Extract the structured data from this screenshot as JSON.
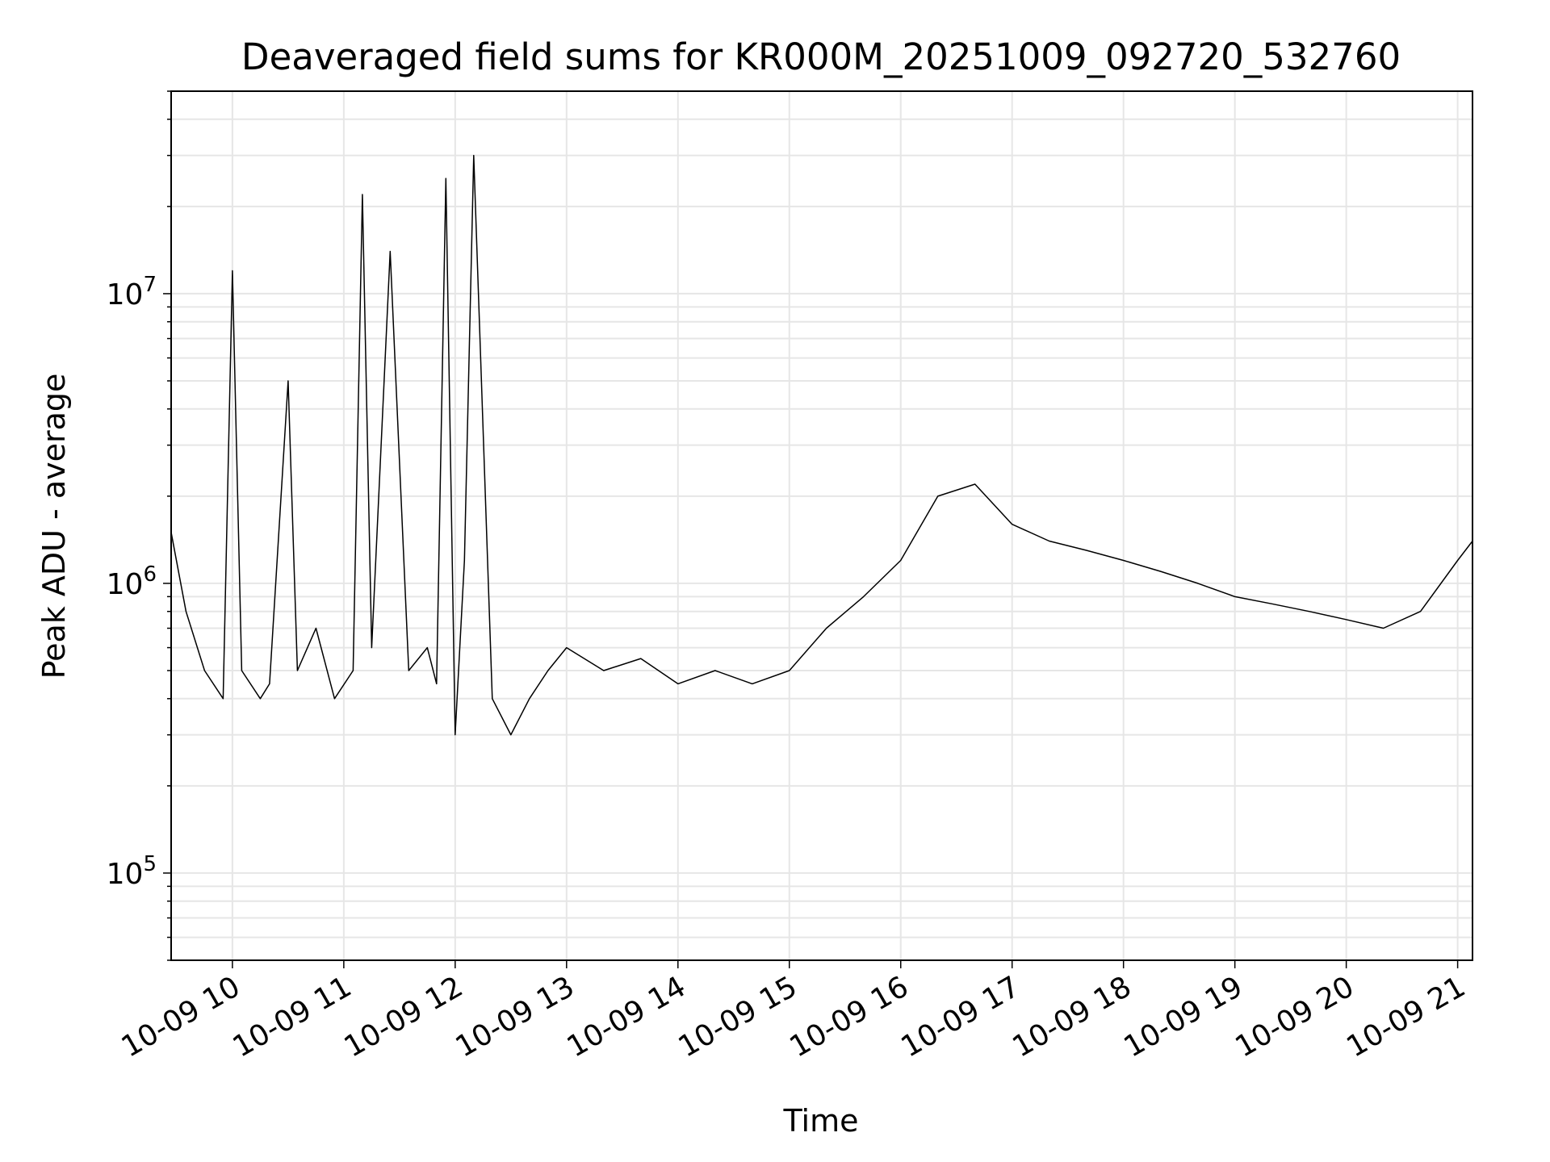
{
  "chart_data": {
    "type": "line",
    "title": "Deaveraged field sums for KR000M_20251009_092720_532760",
    "xlabel": "Time",
    "ylabel": "Peak ADU - average",
    "x_tick_labels": [
      "10-09 10",
      "10-09 11",
      "10-09 12",
      "10-09 13",
      "10-09 14",
      "10-09 15",
      "10-09 16",
      "10-09 17",
      "10-09 18",
      "10-09 19",
      "10-09 20",
      "10-09 21"
    ],
    "x_range": [
      "2025-10-09 09:27",
      "2025-10-09 21:08"
    ],
    "y_scale": "log",
    "ylim": [
      50000,
      50000000
    ],
    "y_major_ticks": [
      100000,
      1000000,
      10000000
    ],
    "y_tick_labels": [
      {
        "base": "10",
        "exp": "5"
      },
      {
        "base": "10",
        "exp": "6"
      },
      {
        "base": "10",
        "exp": "7"
      }
    ],
    "grid": true,
    "line_color": "#000000",
    "grid_color": "#e6e6e6",
    "series": [
      {
        "x": [
          "2025-10-09 09:27",
          "2025-10-09 09:35",
          "2025-10-09 09:45",
          "2025-10-09 09:55",
          "2025-10-09 10:00",
          "2025-10-09 10:05",
          "2025-10-09 10:15",
          "2025-10-09 10:20",
          "2025-10-09 10:30",
          "2025-10-09 10:35",
          "2025-10-09 10:45",
          "2025-10-09 10:55",
          "2025-10-09 11:05",
          "2025-10-09 11:10",
          "2025-10-09 11:15",
          "2025-10-09 11:25",
          "2025-10-09 11:35",
          "2025-10-09 11:45",
          "2025-10-09 11:50",
          "2025-10-09 11:55",
          "2025-10-09 12:00",
          "2025-10-09 12:05",
          "2025-10-09 12:10",
          "2025-10-09 12:20",
          "2025-10-09 12:30",
          "2025-10-09 12:40",
          "2025-10-09 12:50",
          "2025-10-09 13:00",
          "2025-10-09 13:20",
          "2025-10-09 13:40",
          "2025-10-09 14:00",
          "2025-10-09 14:20",
          "2025-10-09 14:40",
          "2025-10-09 15:00",
          "2025-10-09 15:20",
          "2025-10-09 15:40",
          "2025-10-09 16:00",
          "2025-10-09 16:20",
          "2025-10-09 16:40",
          "2025-10-09 17:00",
          "2025-10-09 17:20",
          "2025-10-09 17:40",
          "2025-10-09 18:00",
          "2025-10-09 18:20",
          "2025-10-09 18:40",
          "2025-10-09 19:00",
          "2025-10-09 19:20",
          "2025-10-09 19:40",
          "2025-10-09 20:00",
          "2025-10-09 20:20",
          "2025-10-09 20:40",
          "2025-10-09 21:00",
          "2025-10-09 21:08"
        ],
        "y": [
          1500000,
          800000,
          500000,
          400000,
          12000000,
          500000,
          400000,
          450000,
          5000000,
          500000,
          700000,
          400000,
          500000,
          22000000,
          600000,
          14000000,
          500000,
          600000,
          450000,
          25000000,
          300000,
          1200000,
          30000000,
          400000,
          300000,
          400000,
          500000,
          600000,
          500000,
          550000,
          450000,
          500000,
          450000,
          500000,
          700000,
          900000,
          1200000,
          2000000,
          2200000,
          1600000,
          1400000,
          1300000,
          1200000,
          1100000,
          1000000,
          900000,
          850000,
          800000,
          750000,
          700000,
          800000,
          1200000,
          1400000
        ]
      }
    ]
  }
}
